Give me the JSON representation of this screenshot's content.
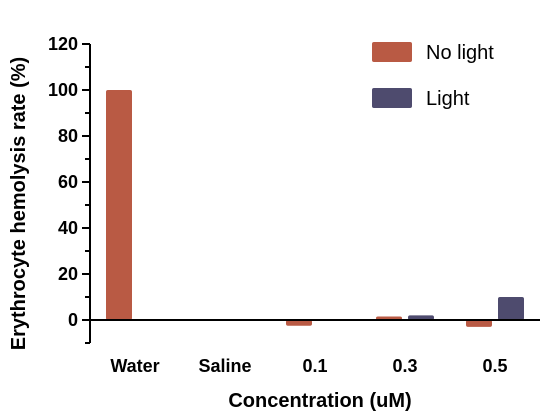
{
  "chart_data": {
    "type": "bar",
    "xlabel": "Concentration (uM)",
    "ylabel": "Erythrocyte hemolysis rate (%)",
    "categories": [
      "Water",
      "Saline",
      "0.1",
      "0.3",
      "0.5"
    ],
    "series": [
      {
        "name": "No light",
        "color": "#B95A44",
        "values": [
          100,
          0,
          -2.5,
          1.5,
          -3
        ]
      },
      {
        "name": "Light",
        "color": "#4E4B6E",
        "values": [
          null,
          null,
          null,
          2,
          10
        ]
      }
    ],
    "ylim": [
      -10,
      120
    ],
    "yticks": [
      0,
      20,
      40,
      60,
      80,
      100,
      120
    ],
    "ytick_labels": [
      "0",
      "20",
      "40",
      "60",
      "80",
      "100",
      "120"
    ],
    "y_minor_step": 10,
    "grid": false,
    "legend": "top-right"
  }
}
